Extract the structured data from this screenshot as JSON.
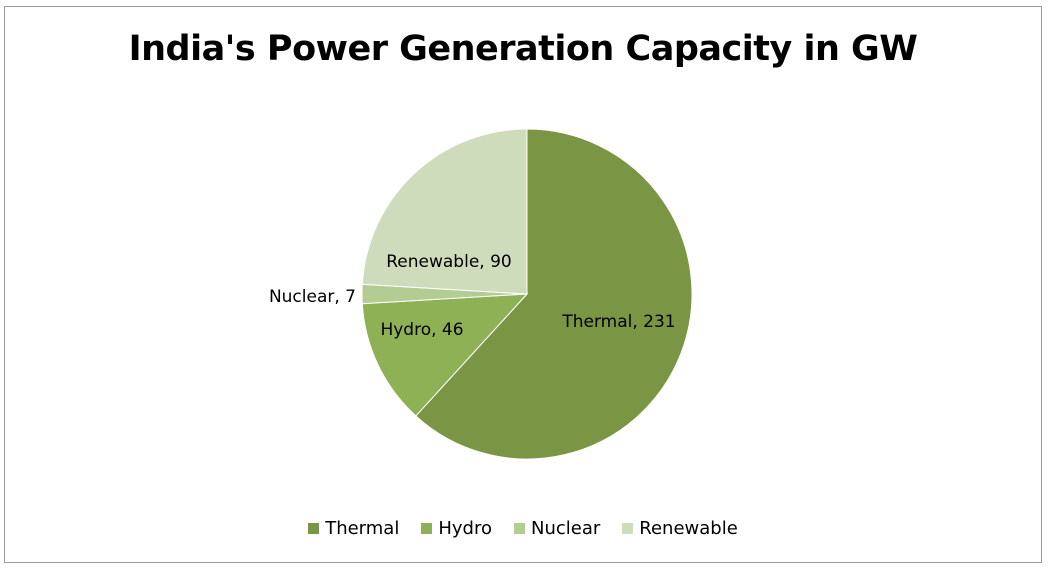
{
  "chart_data": {
    "type": "pie",
    "title": "India's Power Generation Capacity in GW",
    "categories": [
      "Thermal",
      "Hydro",
      "Nuclear",
      "Renewable"
    ],
    "values": [
      231,
      46,
      7,
      90
    ],
    "data_labels": [
      "Thermal, 231",
      "Hydro, 46",
      "Nuclear, 7",
      "Renewable, 90"
    ],
    "colors": [
      "#7a9644",
      "#8fb155",
      "#b3cc94",
      "#cfdcbb"
    ],
    "legend_position": "bottom"
  }
}
